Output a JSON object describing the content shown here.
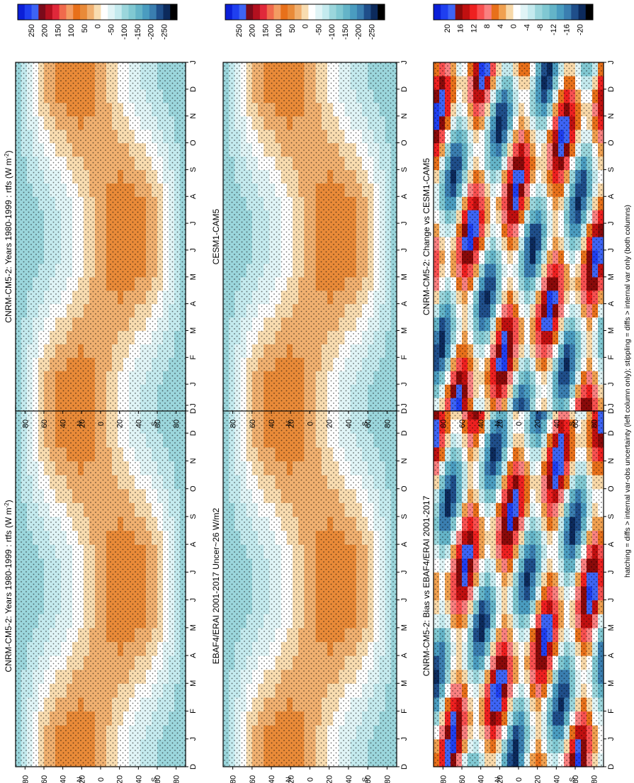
{
  "figure": {
    "caption": "hatching = diffs > internal var-obs uncertainty (left column only); stippling = diffs > internal var only (both columns)",
    "months": [
      "D",
      "J",
      "F",
      "M",
      "A",
      "M",
      "J",
      "J",
      "A",
      "S",
      "O",
      "N",
      "D",
      "J"
    ],
    "lat_labels": [
      "80",
      "60",
      "40",
      "20",
      "0",
      "20",
      "40",
      "60",
      "80"
    ],
    "lat_suffix": {
      "N": "N",
      "S": "S"
    }
  },
  "colorbars": {
    "flux": {
      "labels": [
        "250",
        "200",
        "150",
        "100",
        "50",
        "0",
        "-50",
        "-100",
        "-150",
        "-200",
        "-250"
      ],
      "colors": [
        "#0b1fd8",
        "#1f3ff0",
        "#3d64f5",
        "#7a0a1a",
        "#b3101f",
        "#e0283a",
        "#f06a4c",
        "#f39c62",
        "#e8701a",
        "#e98a38",
        "#f0b070",
        "#f8dcb0",
        "#ffffff",
        "#e0f4f6",
        "#c4eaee",
        "#9bd6dc",
        "#80c8d2",
        "#64b4c8",
        "#4a9cc0",
        "#3a7eb0",
        "#1f4e8a",
        "#0c2a5c",
        "#000000"
      ]
    },
    "diff": {
      "labels": [
        "20",
        "16",
        "12",
        "8",
        "4",
        "0",
        "-4",
        "-8",
        "-12",
        "-16",
        "-20"
      ],
      "colors": [
        "#0b1fd8",
        "#1f3ff0",
        "#3d64f5",
        "#8a0a0a",
        "#c01010",
        "#ee2020",
        "#f85050",
        "#f98080",
        "#e8701a",
        "#f0a050",
        "#f8d8a8",
        "#ffffff",
        "#e0f4f6",
        "#c4eaee",
        "#9bd6dc",
        "#80c8d2",
        "#64b4c8",
        "#4a9cc0",
        "#3a7eb0",
        "#1f4e8a",
        "#0c2a5c",
        "#000000"
      ]
    }
  },
  "panels": [
    {
      "id": "top-left",
      "title": "CNRM-CM5-2: Years 1980-1999 : rtfs (W m",
      "title_sup": "-2",
      "title_end": ")",
      "kind": "flux",
      "hatched": true
    },
    {
      "id": "top-right",
      "title": "CNRM-CM5-2: Years 1980-1999 : rtfs (W m",
      "title_sup": "-2",
      "title_end": ")",
      "kind": "flux",
      "hatched": false
    },
    {
      "id": "mid-left",
      "title": "EBAF4/ERAI 2001-2017 Uncer~26 W/m2",
      "title_sup": "",
      "title_end": "",
      "kind": "flux",
      "hatched": true
    },
    {
      "id": "mid-right",
      "title": "CESM1-CAM5",
      "title_sup": "",
      "title_end": "",
      "kind": "flux",
      "hatched": false
    },
    {
      "id": "bot-left",
      "title": "CNRM-CM5-2: Bias vs EBAF4/ERAI 2001-2017",
      "title_sup": "",
      "title_end": "",
      "kind": "diff",
      "hatched": true
    },
    {
      "id": "bot-right",
      "title": "CNRM-CM5-2: Change vs CESM1-CAM5",
      "title_sup": "",
      "title_end": "",
      "kind": "diff",
      "hatched": false
    }
  ],
  "chart_data": [
    {
      "type": "heatmap",
      "title": "CNRM-CM5-2: Years 1980-1999 : rtfs (W m-2)",
      "x": "month (Dec-Jan)",
      "y": "latitude 80N-80S",
      "zlim": [
        -250,
        250
      ],
      "description_values": "tropics 50 to 100, polar -50 to -100"
    },
    {
      "type": "heatmap",
      "title": "CNRM-CM5-2: Years 1980-1999 : rtfs (W m-2)",
      "zlim": [
        -250,
        250
      ]
    },
    {
      "type": "heatmap",
      "title": "EBAF4/ERAI 2001-2017 Uncer~26 W/m2",
      "zlim": [
        -250,
        250
      ]
    },
    {
      "type": "heatmap",
      "title": "CESM1-CAM5",
      "zlim": [
        -250,
        250
      ]
    },
    {
      "type": "heatmap",
      "title": "CNRM-CM5-2: Bias vs EBAF4/ERAI 2001-2017",
      "zlim": [
        -20,
        20
      ]
    },
    {
      "type": "heatmap",
      "title": "CNRM-CM5-2: Change vs CESM1-CAM5",
      "zlim": [
        -20,
        20
      ]
    }
  ]
}
